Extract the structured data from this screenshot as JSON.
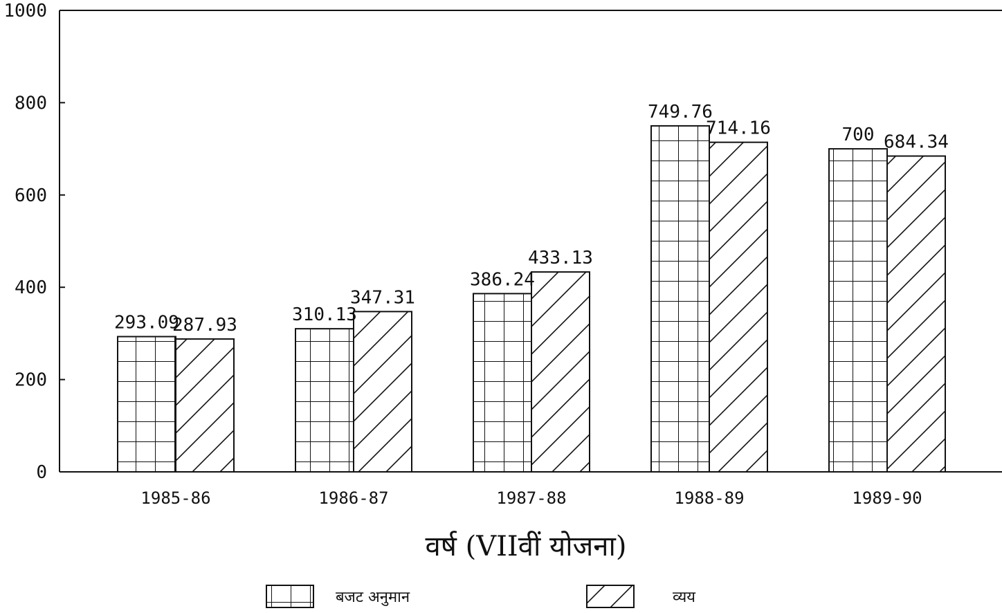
{
  "chart_data": {
    "type": "bar",
    "categories": [
      "1985-86",
      "1986-87",
      "1987-88",
      "1988-89",
      "1989-90"
    ],
    "series": [
      {
        "name": "बजट अनुमान",
        "values": [
          293.09,
          310.13,
          386.24,
          749.76,
          700
        ],
        "labels": [
          "293.09",
          "310.13",
          "386.24",
          "749.76",
          "700"
        ],
        "pattern": "grid"
      },
      {
        "name": "व्यय",
        "values": [
          287.93,
          347.31,
          433.13,
          714.16,
          684.34
        ],
        "labels": [
          "287.93",
          "347.31",
          "433.13",
          "714.16",
          "684.34"
        ],
        "pattern": "hatch"
      }
    ],
    "yticks": [
      "0",
      "200",
      "400",
      "600",
      "800",
      "1000"
    ],
    "ylim": [
      0,
      1000
    ],
    "xlabel": "वर्ष (VIIवीं योजना)",
    "ylabel": "",
    "grid": false,
    "legend": "bottom"
  },
  "colors": {
    "ink": "#111111",
    "background": "#ffffff"
  }
}
